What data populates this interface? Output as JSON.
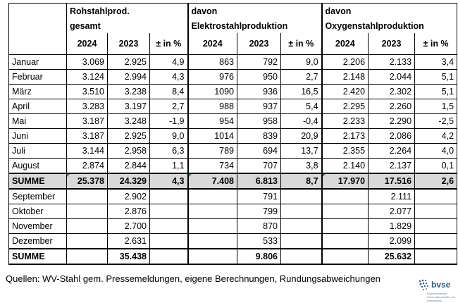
{
  "headers": {
    "group1_line1": "Rohstahlprod.",
    "group1_line2": "gesamt",
    "group2_line1": "davon",
    "group2_line2": "Elektrostahlproduktion",
    "group3_line1": "davon",
    "group3_line2": "Oxygenstahlproduktion",
    "col_2024": "2024",
    "col_2023": "2023",
    "col_pct": "± in %"
  },
  "rows_2024": [
    [
      "Januar",
      "3.069",
      "2.925",
      "4,9",
      "863",
      "792",
      "9,0",
      "2.206",
      "2.133",
      "3,4"
    ],
    [
      "Februar",
      "3.124",
      "2.994",
      "4,3",
      "976",
      "950",
      "2,7",
      "2.148",
      "2.044",
      "5,1"
    ],
    [
      "März",
      "3.510",
      "3.238",
      "8,4",
      "1090",
      "936",
      "16,5",
      "2.420",
      "2.302",
      "5,1"
    ],
    [
      "April",
      "3.283",
      "3.197",
      "2,7",
      "988",
      "937",
      "5,4",
      "2.295",
      "2.260",
      "1,5"
    ],
    [
      "Mai",
      "3.187",
      "3.248",
      "-1,9",
      "954",
      "958",
      "-0,4",
      "2.233",
      "2.290",
      "-2,5"
    ],
    [
      "Juni",
      "3.187",
      "2.925",
      "9,0",
      "1014",
      "839",
      "20,9",
      "2.173",
      "2.086",
      "4,2"
    ],
    [
      "Juli",
      "3.144",
      "2.958",
      "6,3",
      "789",
      "694",
      "13,7",
      "2.355",
      "2.264",
      "4,0"
    ],
    [
      "August",
      "2.874",
      "2.844",
      "1,1",
      "734",
      "707",
      "3,8",
      "2.140",
      "2.137",
      "0,1"
    ]
  ],
  "summe1": [
    "SUMME",
    "25.378",
    "24.329",
    "4,3",
    "7.408",
    "6.813",
    "8,7",
    "17.970",
    "17.516",
    "2,6"
  ],
  "rows_2023": [
    [
      "September",
      "",
      "2.902",
      "",
      "",
      "791",
      "",
      "",
      "2.111",
      ""
    ],
    [
      "Oktober",
      "",
      "2.876",
      "",
      "",
      "799",
      "",
      "",
      "2.077",
      ""
    ],
    [
      "November",
      "",
      "2.700",
      "",
      "",
      "870",
      "",
      "",
      "1.829",
      ""
    ],
    [
      "Dezember",
      "",
      "2.631",
      "",
      "",
      "533",
      "",
      "",
      "2.099",
      ""
    ]
  ],
  "summe2": [
    "SUMME",
    "",
    "35.438",
    "",
    "",
    "9.806",
    "",
    "",
    "25.632",
    ""
  ],
  "footer": {
    "source": "Quellen: WV-Stahl gem. Pressemeldungen, eigene Berechnungen, Rundungsabweichungen",
    "logo_text": "bvse",
    "logo_sub": "Bundesverband Sekundärrohstoffe und Entsorgung"
  },
  "colors": {
    "sum_row_bg": "#d9d9d9",
    "logo_blue": "#2a5a8a"
  }
}
